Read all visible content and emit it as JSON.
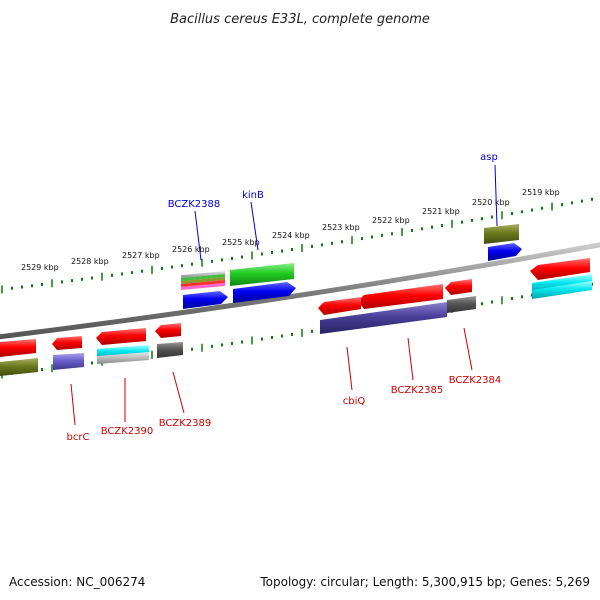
{
  "title": "Bacillus cereus E33L, complete genome",
  "accession": "Accession: NC_006274",
  "topology": "Topology: circular; Length: 5,300,915 bp; Genes: 5,269",
  "colors": {
    "backbone": "#8a8a8a",
    "tick": "#0a7a0a",
    "forward_label": "#0000cc",
    "reverse_label": "#cc0000"
  },
  "kbp_labels": [
    "2519 kbp",
    "2520 kbp",
    "2521 kbp",
    "2522 kbp",
    "2523 kbp",
    "2524 kbp",
    "2525 kbp",
    "2526 kbp",
    "2527 kbp",
    "2528 kbp",
    "2529 kbp"
  ],
  "gene_labels": {
    "asp": "asp",
    "kinB": "kinB",
    "bczk2388": "BCZK2388",
    "bcrC": "bcrC",
    "bczk2390": "BCZK2390",
    "bczk2389": "BCZK2389",
    "cbiQ": "cbiQ",
    "bczk2385": "BCZK2385",
    "bczk2384": "BCZK2384"
  }
}
